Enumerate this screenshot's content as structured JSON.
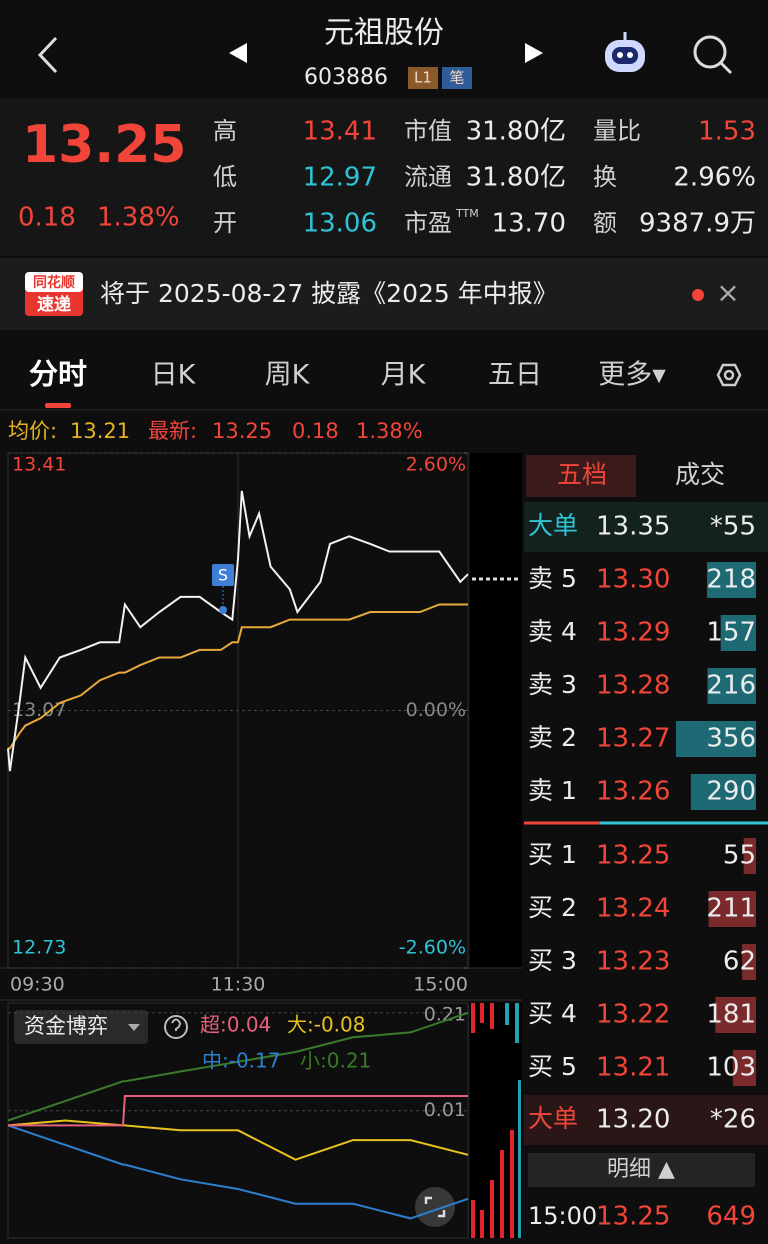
{
  "header": {
    "title": "元祖股份",
    "code": "603886",
    "badges": [
      "L1",
      "笔"
    ]
  },
  "quote": {
    "price": "13.25",
    "change": "0.18",
    "pct": "1.38%",
    "stats": [
      [
        {
          "label": "高",
          "value": "13.41"
        },
        {
          "label": "低",
          "value": "12.97"
        },
        {
          "label": "开",
          "value": "13.06"
        }
      ],
      [
        {
          "label": "市值",
          "value": "31.80亿"
        },
        {
          "label": "流通",
          "value": "31.80亿"
        },
        {
          "label": "市盈",
          "sup": "TTM",
          "value": "13.70"
        }
      ],
      [
        {
          "label": "量比",
          "value": "1.53"
        },
        {
          "label": "换",
          "value": "2.96%"
        },
        {
          "label": "额",
          "value": "9387.9万"
        }
      ]
    ]
  },
  "banner": {
    "logo": [
      "同花顺",
      "速递"
    ],
    "text": "将于 2025-08-27 披露《2025 年中报》",
    "close": "×"
  },
  "tabs": [
    "分时",
    "日K",
    "周K",
    "月K",
    "五日",
    "更多▾"
  ],
  "info": {
    "avg_label": "均价:",
    "avg": "13.21",
    "last_label": "最新:",
    "last": "13.25",
    "change": "0.18",
    "pct": "1.38%"
  },
  "chart_data": [
    {
      "type": "line",
      "marker": "S",
      "x": [
        "09:30",
        "09:31",
        "09:36",
        "09:39",
        "09:47",
        "09:57",
        "10:08",
        "10:18",
        "10:28",
        "10:31",
        "10:39",
        "10:49",
        "11:00",
        "11:10",
        "11:21",
        "11:27",
        "11:30",
        "13:02",
        "13:06",
        "13:11",
        "13:17",
        "13:27",
        "13:31",
        "13:43",
        "13:48",
        "13:58",
        "14:09",
        "14:19",
        "14:35",
        "14:45",
        "14:56",
        "15:00"
      ],
      "series": [
        {
          "color": "#f2f2f2",
          "values": [
            13.02,
            12.99,
            13.08,
            13.14,
            13.1,
            13.14,
            13.15,
            13.16,
            13.16,
            13.21,
            13.18,
            13.2,
            13.22,
            13.22,
            13.2,
            13.19,
            13.27,
            13.36,
            13.3,
            13.33,
            13.26,
            13.23,
            13.2,
            13.24,
            13.29,
            13.3,
            13.29,
            13.28,
            13.28,
            13.28,
            13.24,
            13.25
          ]
        },
        {
          "color": "#e8a93a",
          "values": [
            13.02,
            13.02,
            13.04,
            13.05,
            13.06,
            13.08,
            13.09,
            13.11,
            13.12,
            13.12,
            13.13,
            13.14,
            13.14,
            13.15,
            13.15,
            13.16,
            13.16,
            13.18,
            13.18,
            13.18,
            13.18,
            13.19,
            13.19,
            13.19,
            13.19,
            13.19,
            13.2,
            13.2,
            13.2,
            13.21,
            13.21,
            13.21
          ]
        }
      ],
      "ylim": [
        12.73,
        13.41
      ],
      "yticks": [
        13.41,
        13.07,
        12.73
      ],
      "y2lim": [
        -2.6,
        2.6
      ],
      "y2ticks": [
        {
          "value": 2.6,
          "label": "2.60%"
        },
        {
          "value": 0,
          "label": "0.00%"
        },
        {
          "value": -2.6,
          "label": "-2.60%"
        }
      ],
      "xticks": [
        "09:30",
        "11:30",
        "15:00"
      ]
    },
    {
      "type": "line",
      "title": "资金博弈",
      "legend": [
        "超:0.04",
        "大:-0.08",
        "中:-0.17",
        "小:0.21"
      ],
      "x": [
        "09:30",
        "10:00",
        "10:30",
        "10:31",
        "11:00",
        "11:30",
        "13:30",
        "14:00",
        "14:30",
        "15:00"
      ],
      "series": [
        {
          "color": "#e8607c",
          "values": [
            -0.02,
            -0.02,
            -0.02,
            0.04,
            0.04,
            0.04,
            0.04,
            0.04,
            0.04,
            0.04
          ]
        },
        {
          "color": "#e8c21e",
          "values": [
            -0.02,
            -0.01,
            -0.02,
            -0.02,
            -0.03,
            -0.03,
            -0.09,
            -0.05,
            -0.05,
            -0.08
          ]
        },
        {
          "color": "#2d7fd0",
          "values": [
            -0.02,
            -0.06,
            -0.1,
            -0.1,
            -0.13,
            -0.15,
            -0.18,
            -0.18,
            -0.21,
            -0.17
          ]
        },
        {
          "color": "#3a7a2a",
          "values": [
            -0.01,
            0.03,
            0.07,
            0.07,
            0.09,
            0.11,
            0.13,
            0.16,
            0.17,
            0.21
          ]
        }
      ],
      "ylim": [
        -0.25,
        0.23
      ],
      "yticks": [
        0.21,
        0.01
      ]
    }
  ],
  "order_book": {
    "tabs": [
      "五档",
      "成交"
    ],
    "big_ask": {
      "label": "大单",
      "price": "13.35",
      "volume": "*55"
    },
    "asks": [
      {
        "label": "卖 5",
        "price": "13.30",
        "volume": 218
      },
      {
        "label": "卖 4",
        "price": "13.29",
        "volume": 157
      },
      {
        "label": "卖 3",
        "price": "13.28",
        "volume": 216
      },
      {
        "label": "卖 2",
        "price": "13.27",
        "volume": 356
      },
      {
        "label": "卖 1",
        "price": "13.26",
        "volume": 290
      }
    ],
    "bids": [
      {
        "label": "买 1",
        "price": "13.25",
        "volume": 55
      },
      {
        "label": "买 2",
        "price": "13.24",
        "volume": 211
      },
      {
        "label": "买 3",
        "price": "13.23",
        "volume": 62
      },
      {
        "label": "买 4",
        "price": "13.22",
        "volume": 181
      },
      {
        "label": "买 5",
        "price": "13.21",
        "volume": 103
      }
    ],
    "big_bid": {
      "label": "大单",
      "price": "13.20",
      "volume": "*26"
    },
    "detail": "明细 ▲",
    "trades": [
      {
        "time": "15:00",
        "price": "13.25",
        "volume": "649"
      }
    ]
  }
}
